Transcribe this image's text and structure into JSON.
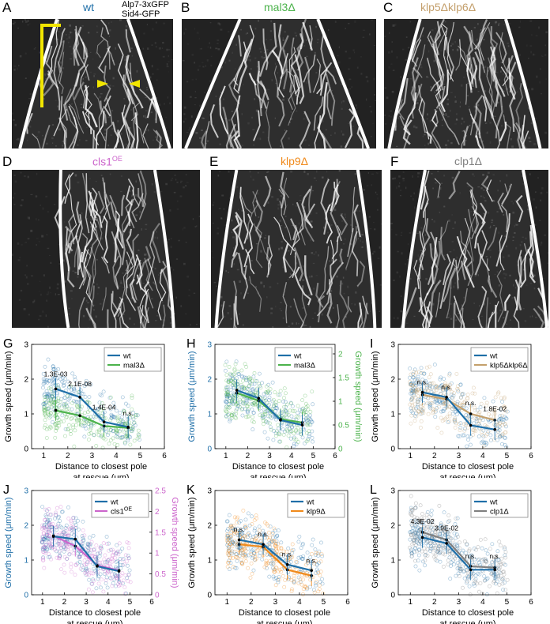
{
  "panels": {
    "A": {
      "letter": "A",
      "title": "wt",
      "title_color": "#1f6fa8",
      "channel_1": "Alp7-3xGFP",
      "channel_2": "Sid4-GFP"
    },
    "B": {
      "letter": "B",
      "title": "mal3Δ",
      "title_color": "#4db34d"
    },
    "C": {
      "letter": "C",
      "title": "klp5Δklp6Δ",
      "title_color": "#c4a06d"
    },
    "D": {
      "letter": "D",
      "title": "cls1",
      "title_sup": "OE",
      "title_color": "#cc66cc"
    },
    "E": {
      "letter": "E",
      "title": "klp9Δ",
      "title_color": "#f08a1c"
    },
    "F": {
      "letter": "F",
      "title": "clp1Δ",
      "title_color": "#808080"
    }
  },
  "colors": {
    "wt": "#1f6fa8",
    "mal3": "#4db34d",
    "klp5klp6": "#c4a06d",
    "cls1": "#cc66cc",
    "klp9": "#f08a1c",
    "clp1": "#808080",
    "arrow": "#f2e600"
  },
  "chart_data": [
    {
      "id": "G",
      "letter": "G",
      "type": "scatter",
      "xlabel_1": "Distance to closest pole",
      "xlabel_2": "at rescue (μm)",
      "ylabel": "Growth speed (μm/min)",
      "xlim": [
        0.5,
        6
      ],
      "ylim": [
        0,
        3
      ],
      "xticks": [
        1,
        2,
        3,
        4,
        5,
        6
      ],
      "yticks": [
        0,
        1,
        2,
        3
      ],
      "series": [
        {
          "name": "wt",
          "color": "#1f6fa8",
          "x": [
            1.5,
            2.5,
            3.5,
            4.5
          ],
          "y": [
            1.72,
            1.48,
            0.77,
            0.62
          ]
        },
        {
          "name": "mal3Δ",
          "color": "#4db34d",
          "x": [
            1.5,
            2.5,
            3.5,
            4.5
          ],
          "y": [
            1.1,
            0.95,
            0.65,
            0.6
          ]
        }
      ],
      "annotations": [
        {
          "x": 1.5,
          "y": 2.08,
          "text": "1.3E-03"
        },
        {
          "x": 2.5,
          "y": 1.8,
          "text": "2.1E-08"
        },
        {
          "x": 3.5,
          "y": 1.12,
          "text": "1.4E-04"
        },
        {
          "x": 4.5,
          "y": 0.95,
          "text": "n.s."
        }
      ]
    },
    {
      "id": "H",
      "letter": "H",
      "type": "scatter",
      "xlabel_1": "Distance to closest pole",
      "xlabel_2": "at rescue (μm)",
      "ylabel": "Growth speed (μm/min)",
      "ylabel_right": "Growth speed (μm/min)",
      "xlim": [
        0.5,
        6
      ],
      "ylim": [
        0,
        3
      ],
      "xticks": [
        1,
        2,
        3,
        4,
        5,
        6
      ],
      "yticks": [
        0,
        1,
        2,
        3
      ],
      "ylim_right": [
        0,
        2.2
      ],
      "yticks_right": [
        0,
        0.5,
        1,
        1.5,
        2
      ],
      "series": [
        {
          "name": "wt",
          "color": "#1f6fa8",
          "x": [
            1.5,
            2.5,
            3.5,
            4.5
          ],
          "y": [
            1.68,
            1.45,
            0.82,
            0.68
          ]
        },
        {
          "name": "mal3Δ",
          "color": "#4db34d",
          "x": [
            1.5,
            2.5,
            3.5,
            4.5
          ],
          "y": [
            1.6,
            1.38,
            0.85,
            0.75
          ]
        }
      ],
      "annotations": []
    },
    {
      "id": "I",
      "letter": "I",
      "type": "scatter",
      "xlabel_1": "Distance to closest pole",
      "xlabel_2": "at rescue (μm)",
      "ylabel": "Growth speed (μm/min)",
      "xlim": [
        0.5,
        6
      ],
      "ylim": [
        0,
        3
      ],
      "xticks": [
        1,
        2,
        3,
        4,
        5,
        6
      ],
      "yticks": [
        0,
        1,
        2,
        3
      ],
      "series": [
        {
          "name": "wt",
          "color": "#1f6fa8",
          "x": [
            1.5,
            2.5,
            3.5,
            4.5
          ],
          "y": [
            1.62,
            1.48,
            0.67,
            0.55
          ]
        },
        {
          "name": "klp5Δklp6Δ",
          "color": "#c4a06d",
          "x": [
            1.5,
            2.5,
            3.5,
            4.5
          ],
          "y": [
            1.55,
            1.42,
            1.0,
            0.82
          ]
        }
      ],
      "annotations": [
        {
          "x": 1.5,
          "y": 1.85,
          "text": "n.s."
        },
        {
          "x": 2.5,
          "y": 1.7,
          "text": "n.s."
        },
        {
          "x": 3.5,
          "y": 1.25,
          "text": "n.s."
        },
        {
          "x": 4.5,
          "y": 1.08,
          "text": "1.8E-02"
        }
      ]
    },
    {
      "id": "J",
      "letter": "J",
      "type": "scatter",
      "xlabel_1": "Distance to closest pole",
      "xlabel_2": "at rescue (μm)",
      "ylabel": "Growth speed (μm/min)",
      "ylabel_right": "Growth speed (μm/min)",
      "xlim": [
        0.5,
        6
      ],
      "ylim": [
        0,
        3
      ],
      "xticks": [
        1,
        2,
        3,
        4,
        5,
        6
      ],
      "yticks": [
        0,
        1,
        2,
        3
      ],
      "ylim_right": [
        0,
        2.5
      ],
      "yticks_right": [
        0,
        0.5,
        1,
        1.5,
        2,
        2.5
      ],
      "series": [
        {
          "name": "wt",
          "color": "#1f6fa8",
          "x": [
            1.5,
            2.5,
            3.5,
            4.5
          ],
          "y": [
            1.68,
            1.6,
            0.82,
            0.68
          ]
        },
        {
          "name": "cls1",
          "name_sup": "OE",
          "color": "#cc66cc",
          "x": [
            1.5,
            2.5,
            3.5,
            4.5
          ],
          "y": [
            1.7,
            1.4,
            0.85,
            0.7
          ]
        }
      ],
      "annotations": []
    },
    {
      "id": "K",
      "letter": "K",
      "type": "scatter",
      "xlabel_1": "Distance to closest pole",
      "xlabel_2": "at rescue (μm)",
      "ylabel": "Growth speed (μm/min)",
      "xlim": [
        0.5,
        6
      ],
      "ylim": [
        0,
        3
      ],
      "xticks": [
        1,
        2,
        3,
        4,
        5,
        6
      ],
      "yticks": [
        0,
        1,
        2,
        3
      ],
      "series": [
        {
          "name": "wt",
          "color": "#1f6fa8",
          "x": [
            1.5,
            2.5,
            3.5,
            4.5
          ],
          "y": [
            1.58,
            1.45,
            0.87,
            0.7
          ]
        },
        {
          "name": "klp9Δ",
          "color": "#f08a1c",
          "x": [
            1.5,
            2.5,
            3.5,
            4.5
          ],
          "y": [
            1.45,
            1.38,
            0.72,
            0.55
          ]
        }
      ],
      "annotations": [
        {
          "x": 1.5,
          "y": 1.82,
          "text": "n.s."
        },
        {
          "x": 2.5,
          "y": 1.68,
          "text": "n.s."
        },
        {
          "x": 3.5,
          "y": 1.1,
          "text": "n.s."
        },
        {
          "x": 4.5,
          "y": 0.92,
          "text": "n.s."
        }
      ]
    },
    {
      "id": "L",
      "letter": "L",
      "type": "scatter",
      "xlabel_1": "Distance to closest pole",
      "xlabel_2": "at rescue (μm)",
      "ylabel": "Growth speed (μm/min)",
      "xlim": [
        0.5,
        6
      ],
      "ylim": [
        0,
        3
      ],
      "xticks": [
        1,
        2,
        3,
        4,
        5,
        6
      ],
      "yticks": [
        0,
        1,
        2,
        3
      ],
      "series": [
        {
          "name": "wt",
          "color": "#1f6fa8",
          "x": [
            1.5,
            2.5,
            3.5,
            4.5
          ],
          "y": [
            1.65,
            1.48,
            0.72,
            0.72
          ]
        },
        {
          "name": "clp1Δ",
          "color": "#808080",
          "x": [
            1.5,
            2.5,
            3.5,
            4.5
          ],
          "y": [
            1.8,
            1.58,
            0.82,
            0.78
          ]
        }
      ],
      "annotations": [
        {
          "x": 1.5,
          "y": 2.05,
          "text": "4.3E-02"
        },
        {
          "x": 2.5,
          "y": 1.85,
          "text": "3.9E-02"
        },
        {
          "x": 3.5,
          "y": 1.05,
          "text": "n.s."
        },
        {
          "x": 4.5,
          "y": 1.05,
          "text": "n.s."
        }
      ]
    }
  ]
}
